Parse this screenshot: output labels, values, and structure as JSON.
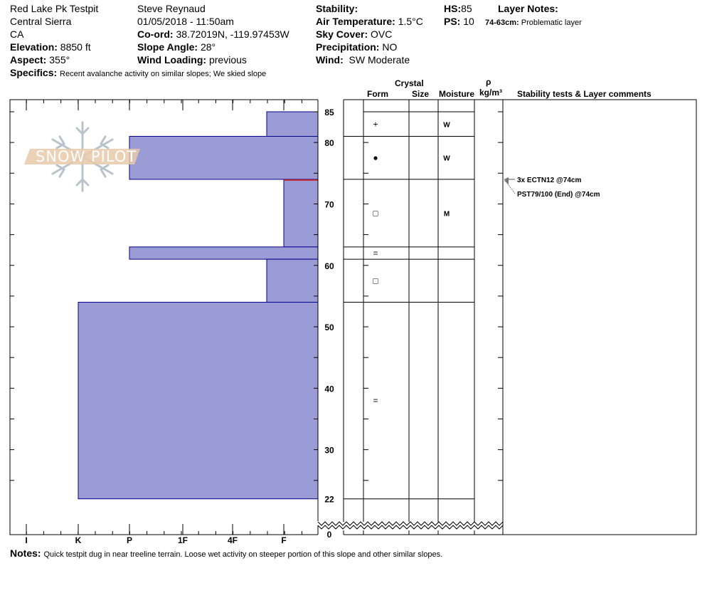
{
  "header": {
    "col1": {
      "pit_name": "Red Lake Pk Testpit",
      "range": "Central Sierra",
      "state": "CA",
      "elevation_label": "Elevation:",
      "elevation": "8850 ft",
      "aspect_label": "Aspect:",
      "aspect": "355°"
    },
    "col2": {
      "observer": "Steve Reynaud",
      "datetime": "01/05/2018 - 11:50am",
      "coord_label": "Co-ord:",
      "coord": "38.72019N, -119.97453W",
      "slope_label": "Slope Angle:",
      "slope": "28°",
      "wind_loading_label": "Wind Loading:",
      "wind_loading": "previous"
    },
    "col3": {
      "stability_label": "Stability:",
      "stability": "",
      "air_temp_label": "Air Temperature:",
      "air_temp": "1.5°C",
      "sky_label": "Sky Cover:",
      "sky": "OVC",
      "precip_label": "Precipitation:",
      "precip": "NO",
      "wind_label": "Wind:",
      "wind": "SW Moderate"
    },
    "col4": {
      "hs_label": "HS:",
      "hs": "85",
      "ps_label": "PS:",
      "ps": "10",
      "layer_notes_label": "Layer Notes:",
      "layer_note_range": "74-63cm:",
      "layer_note": "Problematic layer"
    },
    "specifics_label": "Specifics:",
    "specifics": "Recent avalanche activity on similar slopes; We skied slope"
  },
  "table_headers": {
    "crystal": "Crystal",
    "form": "Form",
    "size": "Size",
    "moisture": "Moisture",
    "rho": "ρ",
    "density_unit": "kg/m³",
    "stability": "Stability tests & Layer comments"
  },
  "logo": {
    "text": "SNOW PILOT"
  },
  "hardness_axis": [
    "I",
    "K",
    "P",
    "1F",
    "4F",
    "F"
  ],
  "depth_ticks": [
    "85",
    "80",
    "70",
    "60",
    "50",
    "40",
    "30",
    "22",
    "0"
  ],
  "layers": [
    {
      "top": 85,
      "bottom": 81,
      "hardness": "F+",
      "form": "+",
      "moisture": "W"
    },
    {
      "top": 81,
      "bottom": 74,
      "hardness": "P",
      "form": "●",
      "moisture": "W"
    },
    {
      "top": 74,
      "bottom": 63,
      "hardness": "F",
      "form": "□",
      "moisture": "M"
    },
    {
      "top": 63,
      "bottom": 61,
      "hardness": "P",
      "form": "=",
      "moisture": ""
    },
    {
      "top": 61,
      "bottom": 54,
      "hardness": "F+",
      "form": "□",
      "moisture": ""
    },
    {
      "top": 54,
      "bottom": 22,
      "hardness": "K",
      "form": "=",
      "moisture": ""
    }
  ],
  "problem_layer_depth": 74,
  "stability_tests": [
    {
      "text": "3x ECTN12 @74cm",
      "depth": 74
    },
    {
      "text": "PST79/100 (End) @74cm",
      "depth": 74
    }
  ],
  "notes_label": "Notes:",
  "notes": "Quick testpit dug in near treeline terrain. Loose wet activity on steeper portion of this slope and other similar slopes.",
  "colors": {
    "layer_fill": "#9b9bd6",
    "layer_stroke": "#00008b",
    "problem": "#c0282d",
    "logo_band": "#e8c9a8",
    "logo_flake": "#b8c4cc"
  }
}
